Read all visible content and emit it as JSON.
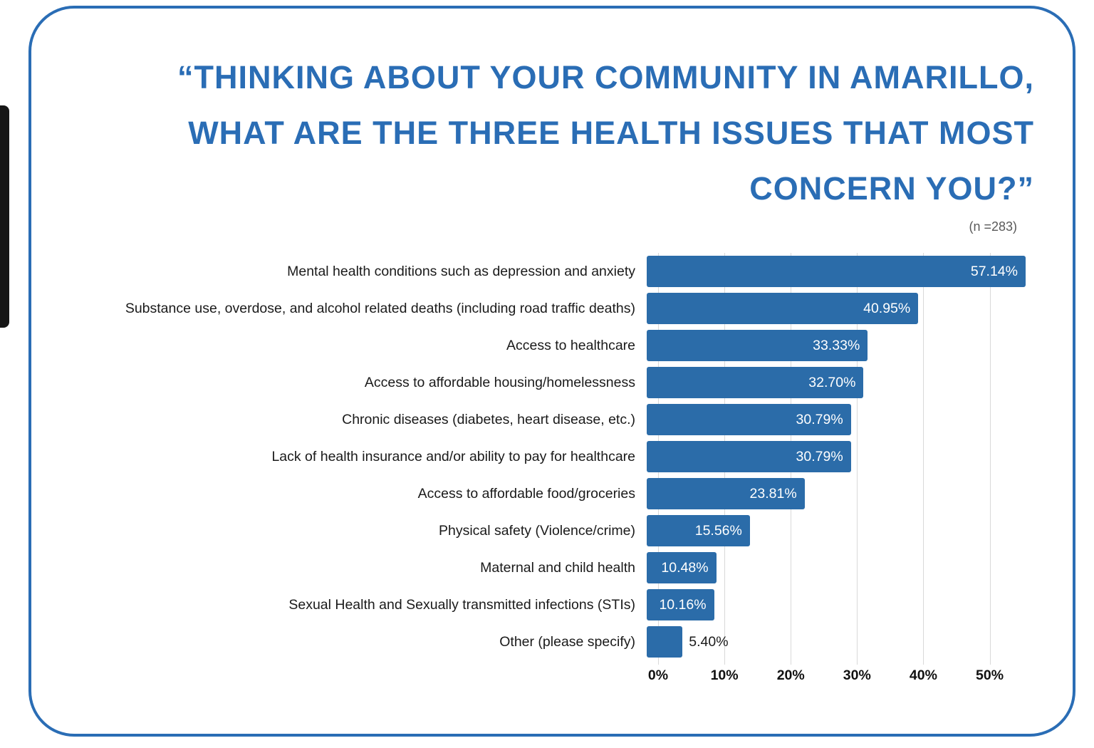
{
  "title": {
    "line1": "“THINKING ABOUT YOUR COMMUNITY IN AMARILLO,",
    "line2": "WHAT ARE THE THREE HEALTH ISSUES THAT MOST",
    "line3": "CONCERN YOU?”",
    "sample": "(n =283)"
  },
  "colors": {
    "accent": "#2a6db5",
    "bar": "#2b6ca9",
    "gridline": "#d9d9d9"
  },
  "chart_data": {
    "type": "bar",
    "orientation": "horizontal",
    "title": "“THINKING ABOUT YOUR COMMUNITY IN AMARILLO, WHAT ARE THE THREE HEALTH ISSUES THAT MOST CONCERN YOU?”",
    "sample_note": "(n =283)",
    "categories": [
      "Mental health conditions such as depression and anxiety",
      "Substance use, overdose, and alcohol related deaths (including road traffic deaths)",
      "Access to healthcare",
      "Access to affordable housing/homelessness",
      "Chronic diseases (diabetes, heart disease, etc.)",
      "Lack of health insurance and/or ability to pay for healthcare",
      "Access to affordable food/groceries",
      "Physical safety (Violence/crime)",
      "Maternal and child health",
      "Sexual Health and Sexually transmitted infections (STIs)",
      "Other (please specify)"
    ],
    "values": [
      57.14,
      40.95,
      33.33,
      32.7,
      30.79,
      30.79,
      23.81,
      15.56,
      10.48,
      10.16,
      5.4
    ],
    "value_labels": [
      "57.14%",
      "40.95%",
      "33.33%",
      "32.70%",
      "30.79%",
      "30.79%",
      "23.81%",
      "15.56%",
      "10.48%",
      "10.16%",
      "5.40%"
    ],
    "xticks": [
      "0%",
      "10%",
      "20%",
      "30%",
      "40%",
      "50%"
    ],
    "xtick_values": [
      0,
      10,
      20,
      30,
      40,
      50
    ],
    "xlim": [
      0,
      58
    ],
    "inside_label_min": 8,
    "grid": true,
    "legend": false
  }
}
